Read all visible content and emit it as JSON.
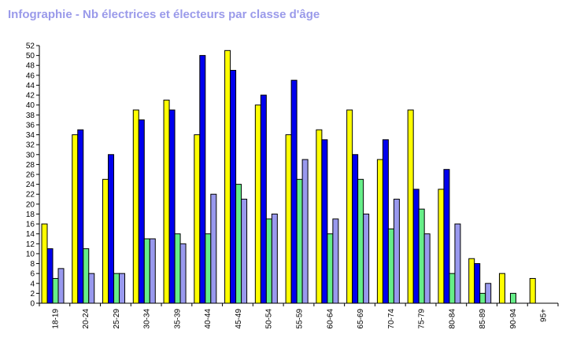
{
  "chart_data": {
    "type": "bar",
    "title": "Infographie - Nb électrices et électeurs par classe d'âge",
    "xlabel": "",
    "ylabel": "",
    "ylim": [
      0,
      52
    ],
    "y_tick_step": 2,
    "grid": false,
    "categories": [
      "18-19",
      "20-24",
      "25-29",
      "30-34",
      "35-39",
      "40-44",
      "45-49",
      "50-54",
      "55-59",
      "60-64",
      "65-69",
      "70-74",
      "75-79",
      "80-84",
      "85-89",
      "90-94",
      "95+"
    ],
    "series": [
      {
        "color": "#ffff00",
        "values": [
          16,
          34,
          25,
          39,
          41,
          34,
          51,
          40,
          34,
          35,
          39,
          29,
          39,
          23,
          9,
          6,
          5
        ]
      },
      {
        "color": "#0000ee",
        "values": [
          11,
          35,
          30,
          37,
          39,
          50,
          47,
          42,
          45,
          33,
          30,
          33,
          23,
          27,
          8,
          0,
          0
        ]
      },
      {
        "color": "#66ee88",
        "values": [
          5,
          11,
          6,
          13,
          14,
          14,
          24,
          17,
          25,
          14,
          25,
          15,
          19,
          6,
          2,
          2,
          0
        ]
      },
      {
        "color": "#9999ee",
        "values": [
          7,
          6,
          6,
          13,
          12,
          22,
          21,
          18,
          29,
          17,
          18,
          21,
          14,
          16,
          4,
          0,
          0
        ]
      }
    ]
  }
}
